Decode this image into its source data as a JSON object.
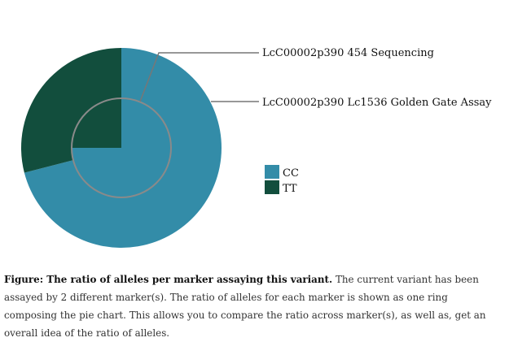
{
  "chart_data": {
    "type": "pie",
    "rings": [
      {
        "name": "LcC00002p390 Lc1536 Golden Gate Assay",
        "ring": "outer",
        "slices": [
          {
            "allele": "CC",
            "value": 71
          },
          {
            "allele": "TT",
            "value": 29
          }
        ]
      },
      {
        "name": "LcC00002p390 454 Sequencing",
        "ring": "inner",
        "slices": [
          {
            "allele": "CC",
            "value": 75
          },
          {
            "allele": "TT",
            "value": 25
          }
        ]
      }
    ],
    "legend": [
      {
        "label": "CC",
        "color": "#338ca8"
      },
      {
        "label": "TT",
        "color": "#124e3d"
      }
    ],
    "legend_position": "right"
  },
  "caption": {
    "bold": "Figure: The ratio of alleles per marker assaying this variant.",
    "text": " The current variant has been assayed by 2 different marker(s). The ratio of alleles for each marker is shown as one ring composing the pie chart. This allows you to compare the ratio across marker(s), as well as, get an overall idea of the ratio of alleles."
  }
}
